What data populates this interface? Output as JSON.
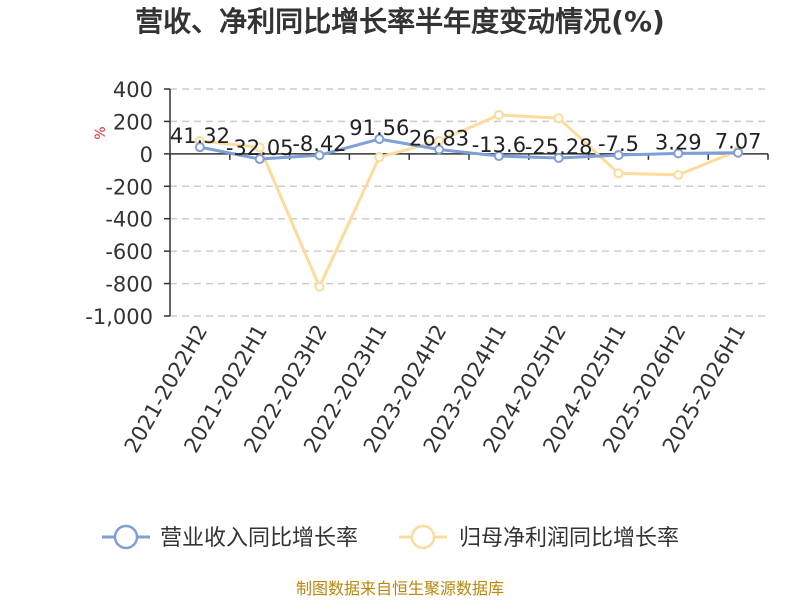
{
  "chart_data": {
    "type": "line",
    "title": "营收、净利同比增长率半年度变动情况(%)",
    "unit_label": "%",
    "categories": [
      "2021-2022H2",
      "2021-2022H1",
      "2022-2023H2",
      "2022-2023H1",
      "2023-2024H2",
      "2023-2024H1",
      "2024-2025H2",
      "2024-2025H1",
      "2025-2026H2",
      "2025-2026H1"
    ],
    "ylim": [
      -1000,
      400
    ],
    "yticks": [
      400,
      200,
      0,
      -200,
      -400,
      -600,
      -800,
      -1000
    ],
    "ytick_labels": [
      "400",
      "200",
      "0",
      "-200",
      "-400",
      "-600",
      "-800",
      "-1,000"
    ],
    "grid": true,
    "legend_position": "bottom",
    "series": [
      {
        "name": "营业收入同比增长率",
        "color": "#7f9fd6",
        "values": [
          41.32,
          -32.05,
          -8.42,
          91.56,
          26.83,
          -13.6,
          -25.28,
          -7.5,
          3.29,
          7.07
        ],
        "labels": [
          "41.32",
          "-32.05",
          "-8.42",
          "91.56",
          "26.83",
          "-13.6",
          "-25.28",
          "-7.5",
          "3.29",
          "7.07"
        ]
      },
      {
        "name": "归母净利润同比增长率",
        "color": "#fbdc9d",
        "values": [
          80,
          40,
          -820,
          -20,
          80,
          240,
          220,
          -120,
          -130,
          20
        ]
      }
    ],
    "source": "制图数据来自恒生聚源数据库"
  }
}
